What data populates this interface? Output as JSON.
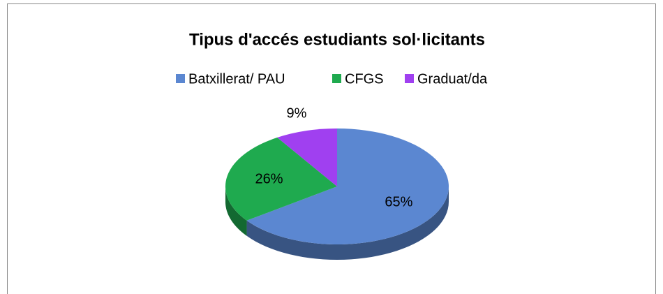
{
  "chart_data": {
    "type": "pie",
    "title": "Tipus d'accés estudiants sol·licitants",
    "categories": [
      "Batxillerat/ PAU",
      "CFGS",
      "Graduat/da"
    ],
    "values": [
      65,
      26,
      9
    ],
    "value_labels": [
      "65%",
      "26%",
      "9%"
    ],
    "colors": [
      "#5b87d1",
      "#1faa4f",
      "#a040f0"
    ],
    "legend": "top"
  }
}
